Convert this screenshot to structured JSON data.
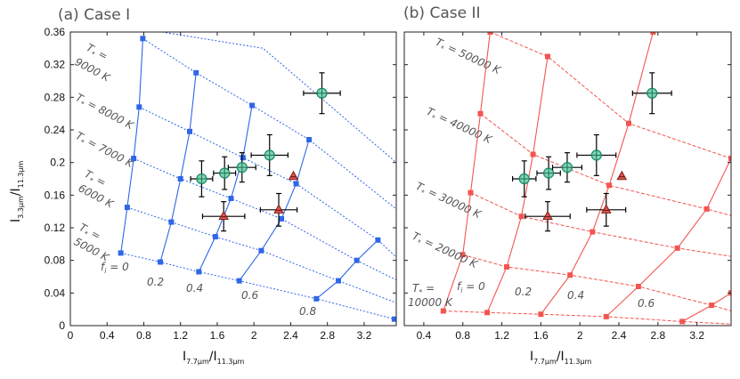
{
  "chart_data": [
    {
      "type": "line",
      "panel_title": "(a) Case I",
      "title": "(a) Case I",
      "xlabel": "I 7.7μm / I 11.3μm",
      "ylabel": "I 3.3μm / I 11.3μm",
      "xlim": [
        0,
        3.55
      ],
      "ylim": [
        0,
        0.36
      ],
      "xticks": [
        0,
        0.4,
        0.8,
        1.2,
        1.6,
        2,
        2.4,
        2.8,
        3.2
      ],
      "yticks": [
        0,
        0.04,
        0.08,
        0.12,
        0.16,
        0.2,
        0.24,
        0.28,
        0.32,
        0.36
      ],
      "xtick_labels": [
        "0",
        "0.4",
        "0.8",
        "1.2",
        "1.6",
        "2",
        "2.4",
        "2.8",
        "3.2"
      ],
      "ytick_labels": [
        "0",
        "0.04",
        "0.08",
        "0.12",
        "0.16",
        "0.2",
        "0.24",
        "0.28",
        "0.32",
        "0.36"
      ],
      "grid_color": "#2f66e8",
      "model_grid": {
        "f_lines": [
          {
            "label": "f_i = 0",
            "f": 0,
            "points": [
              [
                0.55,
                0.089
              ],
              [
                0.62,
                0.145
              ],
              [
                0.69,
                0.205
              ],
              [
                0.75,
                0.268
              ],
              [
                0.79,
                0.352
              ]
            ]
          },
          {
            "label": "0.2",
            "f": 0.2,
            "points": [
              [
                0.98,
                0.078
              ],
              [
                1.1,
                0.127
              ],
              [
                1.2,
                0.18
              ],
              [
                1.3,
                0.238
              ],
              [
                1.37,
                0.31
              ]
            ]
          },
          {
            "label": "0.4",
            "f": 0.4,
            "points": [
              [
                1.4,
                0.066
              ],
              [
                1.58,
                0.109
              ],
              [
                1.75,
                0.156
              ],
              [
                1.88,
                0.206
              ],
              [
                1.98,
                0.27
              ]
            ]
          },
          {
            "label": "0.6",
            "f": 0.6,
            "points": [
              [
                1.84,
                0.055
              ],
              [
                2.08,
                0.092
              ],
              [
                2.3,
                0.131
              ],
              [
                2.46,
                0.174
              ],
              [
                2.6,
                0.228
              ]
            ]
          },
          {
            "label": "0.8",
            "f": 0.8,
            "points": [
              [
                2.68,
                0.033
              ],
              [
                2.92,
                0.055
              ],
              [
                3.12,
                0.08
              ],
              [
                3.35,
                0.105
              ]
            ]
          },
          {
            "label": "",
            "f": 1.0,
            "points": [
              [
                3.53,
                0.008
              ]
            ]
          }
        ],
        "t_lines": [
          {
            "label": "T* = 5000 K",
            "points": [
              [
                0.55,
                0.089
              ],
              [
                0.98,
                0.078
              ],
              [
                1.4,
                0.066
              ],
              [
                1.84,
                0.055
              ],
              [
                2.68,
                0.033
              ],
              [
                3.53,
                0.008
              ]
            ]
          },
          {
            "label": "",
            "points": [
              [
                0.62,
                0.145
              ],
              [
                1.1,
                0.127
              ],
              [
                1.58,
                0.109
              ],
              [
                2.08,
                0.092
              ],
              [
                2.92,
                0.055
              ],
              [
                3.55,
                0.028
              ]
            ]
          },
          {
            "label": "T* = 6000 K",
            "points": [
              [
                0.69,
                0.205
              ],
              [
                1.2,
                0.18
              ],
              [
                1.75,
                0.156
              ],
              [
                2.3,
                0.131
              ],
              [
                3.12,
                0.08
              ],
              [
                3.55,
                0.056
              ]
            ]
          },
          {
            "label": "T* = 7000 K",
            "points": [
              [
                0.75,
                0.268
              ],
              [
                1.3,
                0.238
              ],
              [
                1.88,
                0.206
              ],
              [
                2.46,
                0.174
              ],
              [
                3.35,
                0.105
              ],
              [
                3.55,
                0.084
              ]
            ]
          },
          {
            "label": "T* = 8000 K",
            "points": [
              [
                0.79,
                0.352
              ],
              [
                1.37,
                0.31
              ],
              [
                1.98,
                0.27
              ],
              [
                2.6,
                0.228
              ],
              [
                3.55,
                0.143
              ]
            ]
          },
          {
            "label": "T* = 9000 K",
            "points": [
              [
                1.0,
                0.36
              ],
              [
                2.1,
                0.34
              ],
              [
                3.55,
                0.2
              ]
            ]
          }
        ]
      },
      "observations": [
        {
          "x": 1.43,
          "y": 0.18,
          "xerr": 0.12,
          "yerr": 0.022,
          "marker": "circle-cross"
        },
        {
          "x": 1.68,
          "y": 0.187,
          "xerr": 0.12,
          "yerr": 0.02,
          "marker": "circle-cross"
        },
        {
          "x": 1.87,
          "y": 0.194,
          "xerr": 0.15,
          "yerr": 0.018,
          "marker": "circle-cross"
        },
        {
          "x": 2.17,
          "y": 0.209,
          "xerr": 0.2,
          "yerr": 0.025,
          "marker": "circle-cross"
        },
        {
          "x": 2.74,
          "y": 0.285,
          "xerr": 0.2,
          "yerr": 0.025,
          "marker": "circle-cross"
        },
        {
          "x": 1.67,
          "y": 0.134,
          "xerr": 0.23,
          "yerr": 0.018,
          "marker": "triangle"
        },
        {
          "x": 2.27,
          "y": 0.142,
          "xerr": 0.2,
          "yerr": 0.02,
          "marker": "triangle"
        },
        {
          "x": 2.43,
          "y": 0.183,
          "xerr": 0,
          "yerr": 0,
          "marker": "triangle"
        }
      ]
    },
    {
      "type": "line",
      "panel_title": "(b) Case II",
      "title": "(b) Case II",
      "xlabel": "I 7.7μm / I 11.3μm",
      "ylabel": "",
      "xlim": [
        0.2,
        3.55
      ],
      "ylim": [
        0,
        0.36
      ],
      "xticks": [
        0.4,
        0.8,
        1.2,
        1.6,
        2,
        2.4,
        2.8,
        3.2
      ],
      "xtick_labels": [
        "0.4",
        "0.8",
        "1.2",
        "1.6",
        "2",
        "2.4",
        "2.8",
        "3.2"
      ],
      "grid_color": "#f25550",
      "model_grid": {
        "f_lines": [
          {
            "label": "f_i = 0",
            "f": 0,
            "points": [
              [
                0.6,
                0.018
              ],
              [
                0.8,
                0.087
              ],
              [
                0.88,
                0.163
              ],
              [
                0.98,
                0.26
              ],
              [
                1.08,
                0.36
              ]
            ]
          },
          {
            "label": "0.2",
            "f": 0.2,
            "points": [
              [
                1.05,
                0.016
              ],
              [
                1.25,
                0.072
              ],
              [
                1.4,
                0.134
              ],
              [
                1.52,
                0.21
              ],
              [
                1.67,
                0.33
              ]
            ]
          },
          {
            "label": "0.4",
            "f": 0.4,
            "points": [
              [
                1.6,
                0.014
              ],
              [
                1.9,
                0.062
              ],
              [
                2.13,
                0.115
              ],
              [
                2.3,
                0.172
              ],
              [
                2.5,
                0.248
              ],
              [
                2.75,
                0.36
              ]
            ]
          },
          {
            "label": "0.6",
            "f": 0.6,
            "points": [
              [
                2.27,
                0.011
              ],
              [
                2.6,
                0.048
              ],
              [
                3.0,
                0.095
              ],
              [
                3.3,
                0.143
              ],
              [
                3.55,
                0.205
              ]
            ]
          },
          {
            "label": "",
            "f": 0.8,
            "points": [
              [
                3.05,
                0.005
              ],
              [
                3.35,
                0.025
              ],
              [
                3.55,
                0.04
              ]
            ]
          }
        ],
        "t_lines": [
          {
            "label": "T* = 10000 K",
            "points": [
              [
                0.6,
                0.018
              ],
              [
                1.05,
                0.016
              ],
              [
                1.6,
                0.014
              ],
              [
                2.27,
                0.011
              ],
              [
                3.05,
                0.005
              ],
              [
                3.55,
                0.002
              ]
            ]
          },
          {
            "label": "T* = 20000 K",
            "points": [
              [
                0.8,
                0.087
              ],
              [
                1.25,
                0.072
              ],
              [
                1.9,
                0.062
              ],
              [
                2.6,
                0.048
              ],
              [
                3.35,
                0.025
              ],
              [
                3.55,
                0.018
              ]
            ]
          },
          {
            "label": "T* = 30000 K",
            "points": [
              [
                0.88,
                0.163
              ],
              [
                1.4,
                0.134
              ],
              [
                2.13,
                0.115
              ],
              [
                3.0,
                0.095
              ],
              [
                3.55,
                0.085
              ]
            ]
          },
          {
            "label": "T* = 40000 K",
            "points": [
              [
                0.98,
                0.26
              ],
              [
                1.52,
                0.21
              ],
              [
                2.3,
                0.172
              ],
              [
                3.3,
                0.143
              ],
              [
                3.55,
                0.135
              ]
            ]
          },
          {
            "label": "T* = 50000 K",
            "points": [
              [
                1.08,
                0.36
              ],
              [
                1.67,
                0.33
              ],
              [
                2.5,
                0.248
              ],
              [
                3.55,
                0.205
              ]
            ]
          }
        ]
      },
      "observations": [
        {
          "x": 1.43,
          "y": 0.18,
          "xerr": 0.12,
          "yerr": 0.022,
          "marker": "circle-cross"
        },
        {
          "x": 1.68,
          "y": 0.187,
          "xerr": 0.12,
          "yerr": 0.02,
          "marker": "circle-cross"
        },
        {
          "x": 1.87,
          "y": 0.194,
          "xerr": 0.15,
          "yerr": 0.018,
          "marker": "circle-cross"
        },
        {
          "x": 2.17,
          "y": 0.209,
          "xerr": 0.2,
          "yerr": 0.025,
          "marker": "circle-cross"
        },
        {
          "x": 2.74,
          "y": 0.285,
          "xerr": 0.2,
          "yerr": 0.025,
          "marker": "circle-cross"
        },
        {
          "x": 1.67,
          "y": 0.134,
          "xerr": 0.23,
          "yerr": 0.018,
          "marker": "triangle"
        },
        {
          "x": 2.27,
          "y": 0.142,
          "xerr": 0.2,
          "yerr": 0.02,
          "marker": "triangle"
        },
        {
          "x": 2.43,
          "y": 0.183,
          "xerr": 0,
          "yerr": 0,
          "marker": "triangle"
        }
      ]
    }
  ],
  "annotations": {
    "a": {
      "t9000_T": "T",
      "t9000_star": "*",
      "t9000_eq": " =",
      "t9000_val": "9000 K",
      "t8000_T": "T",
      "t8000_star": "*",
      "t8000_val": " = 8000 K",
      "t7000_T": "T",
      "t7000_star": "*",
      "t7000_val": " = 7000 K",
      "t6000_T": "T",
      "t6000_star": "*",
      "t6000_eq": " =",
      "t6000_val": "6000 K",
      "t5000_T": "T",
      "t5000_star": "*",
      "t5000_eq": " =",
      "t5000_val": "5000 K",
      "f_label": "f",
      "f_sub": "i",
      "f_val": " = 0",
      "f02": "0.2",
      "f04": "0.4",
      "f06": "0.6",
      "f08": "0.8"
    },
    "b": {
      "t50000_T": "T",
      "t50000_star": "*",
      "t50000_val": " = 50000 K",
      "t40000_T": "T",
      "t40000_star": "*",
      "t40000_val": " = 40000 K",
      "t30000_T": "T",
      "t30000_star": "*",
      "t30000_val": " = 30000 K",
      "t20000_T": "T",
      "t20000_star": "*",
      "t20000_val": " = 20000 K",
      "t10000_T": "T",
      "t10000_star": "*",
      "t10000_eq": " =",
      "t10000_val": "10000 K",
      "f_label": "f",
      "f_sub": "i",
      "f_val": " = 0",
      "f02": "0.2",
      "f04": "0.4",
      "f06": "0.6"
    }
  },
  "axis_text": {
    "I": "I",
    "sub_num": "7.7μm",
    "sub_den": "11.3μm",
    "sub_y": "3.3μm",
    "slash": "/I"
  }
}
